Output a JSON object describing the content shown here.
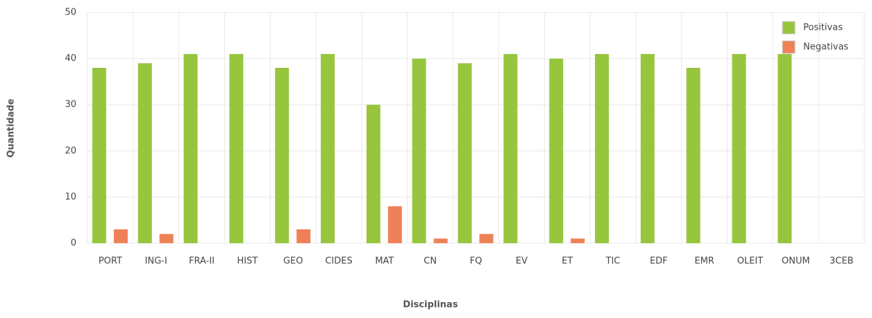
{
  "chart_data": {
    "type": "bar",
    "categories": [
      "PORT",
      "ING-I",
      "FRA-II",
      "HIST",
      "GEO",
      "CIDES",
      "MAT",
      "CN",
      "FQ",
      "EV",
      "ET",
      "TIC",
      "EDF",
      "EMR",
      "OLEIT",
      "ONUM",
      "3CEB"
    ],
    "series": [
      {
        "name": "Positivas",
        "color": "#97c63e",
        "values": [
          38,
          39,
          41,
          41,
          38,
          41,
          30,
          40,
          39,
          41,
          40,
          41,
          41,
          38,
          41,
          41,
          null
        ]
      },
      {
        "name": "Negativas",
        "color": "#ef8158",
        "values": [
          3,
          2,
          0,
          0,
          3,
          0,
          8,
          1,
          2,
          0,
          1,
          0,
          0,
          0,
          0,
          0,
          null
        ]
      }
    ],
    "ylim": [
      0,
      50
    ],
    "yticks": [
      0,
      10,
      20,
      30,
      40,
      50
    ],
    "grid": true,
    "legend": "top-right",
    "xlabel": "Disciplinas",
    "ylabel": "Quantidade"
  }
}
